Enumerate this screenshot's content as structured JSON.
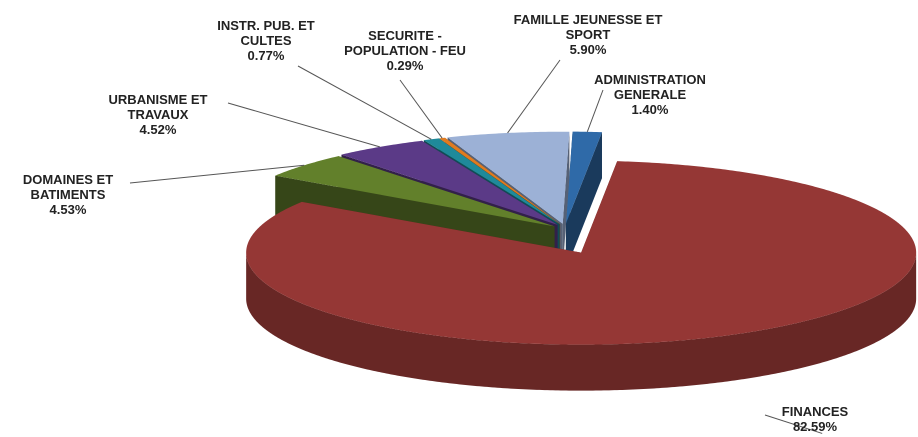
{
  "chart_data": {
    "type": "pie",
    "categories": [
      "ADMINISTRATION\nGENERALE",
      "FINANCES",
      "DOMAINES ET\nBATIMENTS",
      "URBANISME ET\nTRAVAUX",
      "INSTR. PUB. ET\nCULTES",
      "SECURITE -\nPOPULATION - FEU",
      "FAMILLE JEUNESSE ET\nSPORT"
    ],
    "values": [
      1.4,
      82.59,
      4.53,
      4.52,
      0.77,
      0.29,
      5.9
    ],
    "value_labels": [
      "1.40%",
      "82.59%",
      "4.53%",
      "4.52%",
      "0.77%",
      "0.29%",
      "5.90%"
    ],
    "colors": [
      "#2f6aa8",
      "#953735",
      "#62802b",
      "#5b3a87",
      "#1f8a9a",
      "#e07b1f",
      "#9cb1d6"
    ]
  }
}
